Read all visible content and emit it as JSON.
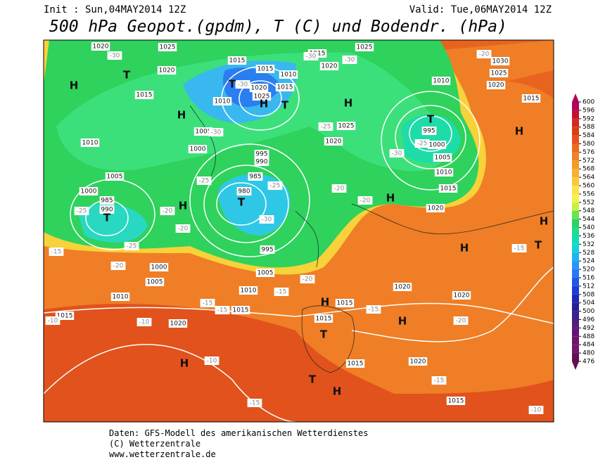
{
  "header": {
    "init": "Init : Sun,04MAY2014 12Z",
    "valid": "Valid: Tue,06MAY2014 12Z",
    "title": "500 hPa Geopot.(gpdm), T (C) und Bodendr. (hPa)"
  },
  "map": {
    "highs_lows": [
      "H",
      "T",
      "H",
      "T",
      "H",
      "T",
      "H",
      "T",
      "H",
      "T",
      "T",
      "H",
      "H",
      "H",
      "T",
      "H",
      "H",
      "T",
      "H",
      "H",
      "T",
      "H"
    ],
    "isobar_labels": [
      "1020",
      "1025",
      "1020",
      "1015",
      "1015",
      "1015",
      "1015",
      "1025",
      "1020",
      "1010",
      "1020",
      "1025",
      "1015",
      "1010",
      "1005",
      "1000",
      "995",
      "990",
      "985",
      "980",
      "1010",
      "1005",
      "1000",
      "985",
      "990",
      "1025",
      "1020",
      "1010",
      "1030",
      "1025",
      "1020",
      "995",
      "1000",
      "1005",
      "1010",
      "1015",
      "1020",
      "1015",
      "995",
      "1000",
      "1005",
      "1005",
      "1010",
      "1010",
      "1015",
      "1015",
      "1015",
      "1020",
      "1020",
      "1020",
      "1020",
      "1015",
      "1015",
      "1015"
    ],
    "temp_labels": [
      "-30",
      "-25",
      "-20",
      "-20",
      "-25",
      "-15",
      "-20",
      "-25",
      "-30",
      "-25",
      "-30",
      "-30",
      "-25",
      "-30",
      "-30",
      "-20",
      "-20",
      "-30",
      "-25",
      "-20",
      "-20",
      "-15",
      "-15",
      "-15",
      "-15",
      "-20",
      "-10",
      "-10",
      "-10",
      "-15",
      "-15",
      "-10",
      "-15"
    ]
  },
  "colorbar": {
    "levels": [
      600,
      596,
      592,
      588,
      584,
      580,
      576,
      572,
      568,
      564,
      560,
      556,
      552,
      548,
      544,
      540,
      536,
      532,
      528,
      524,
      520,
      516,
      512,
      508,
      504,
      500,
      496,
      492,
      488,
      484,
      480,
      476
    ],
    "colors": [
      "#b0005a",
      "#c8102e",
      "#d22a1e",
      "#dc3c14",
      "#e6501e",
      "#ec6a1e",
      "#f08228",
      "#f59a28",
      "#f8b030",
      "#fbc83c",
      "#fde050",
      "#f5f050",
      "#c8f03c",
      "#64e650",
      "#28d264",
      "#1edc8c",
      "#14dcb4",
      "#14d2dc",
      "#1eb4f0",
      "#2896f5",
      "#2878f0",
      "#1e5ae6",
      "#1e3cd2",
      "#1e28b4",
      "#281e96",
      "#3c1e8c",
      "#501e82",
      "#641478",
      "#6e1470",
      "#781468",
      "#641050"
    ]
  },
  "footer": {
    "line1": "Daten: GFS-Modell des amerikanischen Wetterdienstes",
    "line2": "(C) Wetterzentrale",
    "line3": "www.wetterzentrale.de"
  }
}
